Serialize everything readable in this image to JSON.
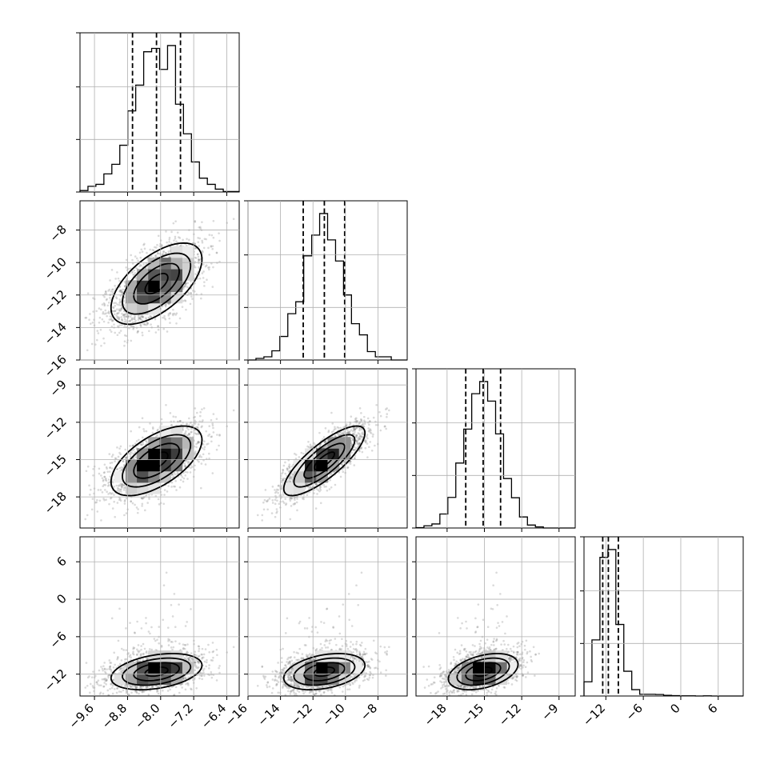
{
  "chart_data": {
    "type": "corner",
    "parameters": [
      {
        "index": 0,
        "mean": -8.1,
        "std": 0.55,
        "q16": -8.68,
        "q50": -8.1,
        "q84": -7.52,
        "range": [
          -9.95,
          -6.1
        ]
      },
      {
        "index": 1,
        "mean": -11.3,
        "std": 1.25,
        "q16": -12.6,
        "q50": -11.3,
        "q84": -10.05,
        "range": [
          -16.0,
          -6.2
        ]
      },
      {
        "index": 2,
        "mean": -15.1,
        "std": 1.4,
        "q16": -16.5,
        "q50": -15.1,
        "q84": -13.7,
        "range": [
          -20.5,
          -7.7
        ]
      },
      {
        "index": 3,
        "mean": -11.6,
        "std": 1.45,
        "q16": -12.5,
        "q50": -11.6,
        "q84": -10.0,
        "range": [
          -15.5,
          10.0
        ]
      }
    ],
    "correlations": [
      [
        1,
        0.6,
        0.6,
        0.35
      ],
      [
        0.6,
        1,
        0.8,
        0.35
      ],
      [
        0.6,
        0.8,
        1,
        0.4
      ],
      [
        0.35,
        0.35,
        0.4,
        1
      ]
    ],
    "scatter_tail": {
      "parameter_index": 3,
      "direction": "positive",
      "max": 8
    },
    "contour_levels": [
      0.5,
      1.0,
      1.5,
      2.0
    ],
    "grid": true,
    "tick_labels": {
      "x": [
        [
          "−9.6",
          "−8.8",
          "−8.0",
          "−7.2",
          "−6.4"
        ],
        [
          "−16",
          "−14",
          "−12",
          "−10",
          "−8"
        ],
        [
          "−18",
          "−15",
          "−12",
          "−9"
        ],
        [
          "−12",
          "−6",
          "0",
          "6"
        ]
      ],
      "y": [
        [],
        [
          "−8",
          "−10",
          "−12",
          "−14",
          "−16"
        ],
        [
          "−9",
          "−12",
          "−15",
          "−18"
        ],
        [
          "6",
          "0",
          "−6",
          "−12"
        ]
      ]
    },
    "tick_values": {
      "x": [
        [
          -9.6,
          -8.8,
          -8.0,
          -7.2,
          -6.4
        ],
        [
          -16,
          -14,
          -12,
          -10,
          -8
        ],
        [
          -18,
          -15,
          -12,
          -9
        ],
        [
          -12,
          -6,
          0,
          6
        ]
      ],
      "y": [
        [],
        [
          -8,
          -10,
          -12,
          -14,
          -16
        ],
        [
          -9,
          -12,
          -15,
          -18
        ],
        [
          6,
          0,
          -6,
          -12
        ]
      ]
    }
  }
}
